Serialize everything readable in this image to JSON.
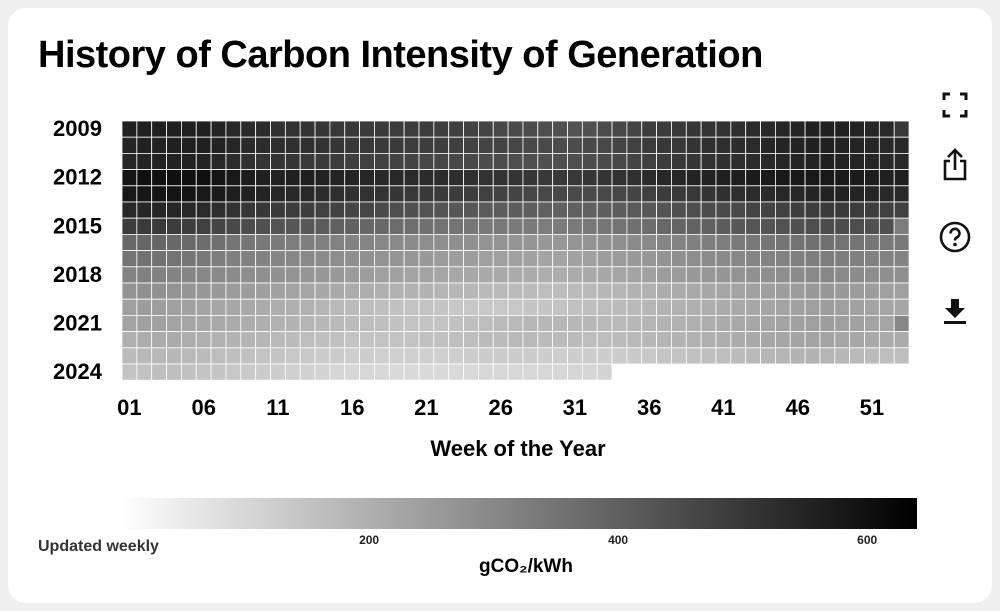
{
  "header": {
    "title": "History of Carbon Intensity of Generation"
  },
  "toolbar": {
    "icons": [
      "fullscreen-icon",
      "share-icon",
      "help-icon",
      "download-icon"
    ]
  },
  "footer": {
    "updated": "Updated weekly"
  },
  "chart_data": {
    "type": "heatmap",
    "title": "History of Carbon Intensity of Generation",
    "xlabel": "Week of the Year",
    "ylabel": "",
    "color_scale": {
      "min": 0,
      "max": 640,
      "ticks": [
        200,
        400,
        600
      ],
      "label": "gCO₂/kWh",
      "low_color": "#ffffff",
      "high_color": "#000000"
    },
    "x_ticks": [
      "01",
      "06",
      "11",
      "16",
      "21",
      "26",
      "31",
      "36",
      "41",
      "46",
      "51"
    ],
    "y_ticks": [
      "2009",
      "2012",
      "2015",
      "2018",
      "2021",
      "2024"
    ],
    "weeks_per_year": 53,
    "years": [
      {
        "year": 2009,
        "values": [
          560,
          560,
          560,
          560,
          560,
          560,
          550,
          540,
          535,
          530,
          520,
          515,
          510,
          505,
          500,
          500,
          495,
          495,
          490,
          490,
          490,
          485,
          480,
          475,
          470,
          460,
          455,
          450,
          445,
          440,
          435,
          440,
          450,
          460,
          470,
          485,
          490,
          500,
          505,
          510,
          515,
          525,
          535,
          540,
          545,
          550,
          560,
          560,
          560,
          550,
          545,
          540,
          500
        ]
      },
      {
        "year": 2010,
        "values": [
          550,
          555,
          555,
          560,
          560,
          560,
          555,
          545,
          535,
          530,
          525,
          520,
          520,
          515,
          505,
          500,
          500,
          495,
          495,
          490,
          485,
          485,
          480,
          475,
          470,
          470,
          465,
          460,
          455,
          450,
          450,
          460,
          460,
          470,
          480,
          490,
          500,
          500,
          510,
          520,
          525,
          530,
          535,
          545,
          550,
          555,
          560,
          560,
          555,
          550,
          545,
          540,
          540
        ]
      },
      {
        "year": 2011,
        "values": [
          545,
          550,
          555,
          555,
          555,
          550,
          540,
          530,
          520,
          510,
          510,
          505,
          500,
          495,
          490,
          485,
          480,
          480,
          475,
          470,
          465,
          465,
          460,
          455,
          450,
          450,
          445,
          445,
          440,
          440,
          445,
          450,
          455,
          460,
          470,
          480,
          490,
          500,
          505,
          515,
          520,
          525,
          530,
          540,
          545,
          550,
          555,
          560,
          555,
          550,
          545,
          540,
          540
        ]
      },
      {
        "year": 2012,
        "values": [
          590,
          600,
          600,
          600,
          600,
          600,
          590,
          580,
          570,
          560,
          555,
          560,
          560,
          555,
          550,
          550,
          545,
          540,
          540,
          535,
          530,
          530,
          525,
          520,
          515,
          515,
          510,
          505,
          500,
          500,
          500,
          505,
          510,
          515,
          520,
          530,
          540,
          545,
          550,
          555,
          560,
          565,
          570,
          575,
          580,
          580,
          580,
          580,
          575,
          570,
          565,
          560,
          560
        ]
      },
      {
        "year": 2013,
        "values": [
          580,
          585,
          590,
          590,
          590,
          580,
          575,
          565,
          560,
          550,
          545,
          540,
          540,
          530,
          525,
          520,
          515,
          510,
          505,
          500,
          500,
          495,
          490,
          485,
          480,
          475,
          470,
          465,
          460,
          460,
          455,
          455,
          460,
          465,
          470,
          480,
          490,
          495,
          500,
          510,
          520,
          525,
          530,
          535,
          540,
          545,
          550,
          555,
          555,
          550,
          545,
          540,
          540
        ]
      },
      {
        "year": 2014,
        "values": [
          540,
          545,
          545,
          545,
          540,
          535,
          525,
          515,
          505,
          500,
          495,
          490,
          485,
          480,
          475,
          470,
          465,
          455,
          445,
          440,
          435,
          430,
          425,
          420,
          415,
          410,
          410,
          405,
          400,
          400,
          400,
          400,
          405,
          410,
          415,
          420,
          430,
          440,
          445,
          450,
          455,
          460,
          470,
          475,
          480,
          485,
          490,
          495,
          495,
          490,
          485,
          480,
          480
        ]
      },
      {
        "year": 2015,
        "values": [
          490,
          495,
          495,
          490,
          485,
          480,
          470,
          460,
          450,
          440,
          430,
          425,
          420,
          410,
          400,
          395,
          385,
          380,
          370,
          365,
          360,
          355,
          350,
          345,
          340,
          340,
          335,
          335,
          330,
          330,
          335,
          340,
          345,
          355,
          360,
          370,
          380,
          390,
          395,
          400,
          410,
          420,
          425,
          430,
          435,
          440,
          445,
          450,
          450,
          445,
          440,
          440,
          330
        ]
      },
      {
        "year": 2016,
        "values": [
          380,
          385,
          385,
          380,
          375,
          370,
          360,
          350,
          345,
          340,
          335,
          330,
          325,
          320,
          315,
          310,
          305,
          300,
          295,
          290,
          285,
          280,
          280,
          275,
          270,
          270,
          265,
          265,
          260,
          260,
          265,
          270,
          275,
          280,
          290,
          295,
          305,
          310,
          320,
          325,
          330,
          335,
          340,
          345,
          350,
          355,
          360,
          360,
          355,
          350,
          345,
          340,
          340
        ]
      },
      {
        "year": 2017,
        "values": [
          350,
          355,
          355,
          350,
          345,
          340,
          330,
          320,
          315,
          310,
          305,
          300,
          295,
          290,
          285,
          280,
          275,
          270,
          265,
          260,
          255,
          250,
          245,
          245,
          240,
          240,
          235,
          235,
          230,
          230,
          235,
          240,
          245,
          250,
          255,
          260,
          270,
          280,
          285,
          290,
          295,
          300,
          305,
          310,
          315,
          320,
          325,
          330,
          325,
          320,
          315,
          310,
          310
        ]
      },
      {
        "year": 2018,
        "values": [
          310,
          315,
          315,
          310,
          305,
          300,
          295,
          290,
          285,
          280,
          275,
          270,
          265,
          260,
          255,
          250,
          245,
          240,
          235,
          230,
          230,
          225,
          220,
          220,
          215,
          215,
          210,
          210,
          205,
          205,
          210,
          215,
          220,
          225,
          230,
          235,
          245,
          250,
          255,
          260,
          265,
          270,
          275,
          280,
          285,
          290,
          295,
          300,
          295,
          290,
          285,
          280,
          280
        ]
      },
      {
        "year": 2019,
        "values": [
          270,
          275,
          275,
          270,
          265,
          260,
          255,
          250,
          245,
          240,
          235,
          230,
          225,
          220,
          215,
          210,
          205,
          200,
          195,
          190,
          190,
          185,
          180,
          180,
          175,
          175,
          170,
          170,
          165,
          165,
          170,
          175,
          180,
          185,
          190,
          195,
          205,
          210,
          215,
          220,
          225,
          230,
          235,
          240,
          245,
          250,
          255,
          260,
          255,
          250,
          245,
          240,
          240
        ]
      },
      {
        "year": 2020,
        "values": [
          240,
          245,
          245,
          240,
          235,
          230,
          225,
          220,
          215,
          210,
          205,
          200,
          195,
          185,
          175,
          170,
          165,
          160,
          155,
          150,
          150,
          145,
          140,
          140,
          140,
          140,
          140,
          145,
          145,
          150,
          155,
          160,
          165,
          170,
          175,
          180,
          190,
          195,
          200,
          205,
          210,
          215,
          220,
          225,
          230,
          235,
          240,
          245,
          240,
          235,
          230,
          225,
          225
        ]
      },
      {
        "year": 2021,
        "values": [
          230,
          235,
          235,
          230,
          225,
          220,
          215,
          210,
          205,
          200,
          195,
          190,
          185,
          180,
          175,
          170,
          165,
          160,
          155,
          150,
          150,
          150,
          155,
          160,
          165,
          170,
          175,
          180,
          180,
          180,
          180,
          180,
          175,
          175,
          180,
          185,
          190,
          195,
          200,
          205,
          210,
          215,
          220,
          225,
          230,
          235,
          240,
          245,
          240,
          235,
          230,
          225,
          300
        ]
      },
      {
        "year": 2022,
        "values": [
          200,
          205,
          210,
          210,
          205,
          200,
          195,
          190,
          185,
          180,
          175,
          170,
          165,
          160,
          155,
          150,
          150,
          150,
          150,
          150,
          155,
          155,
          160,
          165,
          170,
          170,
          175,
          175,
          170,
          170,
          170,
          165,
          165,
          170,
          175,
          180,
          185,
          190,
          195,
          200,
          205,
          210,
          215,
          220,
          225,
          230,
          230,
          230,
          225,
          220,
          215,
          210,
          210
        ]
      },
      {
        "year": 2023,
        "values": [
          170,
          175,
          180,
          180,
          175,
          170,
          165,
          160,
          155,
          150,
          145,
          140,
          135,
          130,
          130,
          125,
          125,
          120,
          120,
          120,
          120,
          120,
          125,
          125,
          130,
          130,
          130,
          130,
          125,
          125,
          125,
          125,
          125,
          130,
          135,
          140,
          145,
          150,
          155,
          160,
          165,
          170,
          175,
          180,
          185,
          190,
          190,
          185,
          180,
          175,
          170,
          165,
          165
        ]
      },
      {
        "year": 2024,
        "values": [
          150,
          155,
          160,
          160,
          155,
          150,
          145,
          140,
          135,
          130,
          125,
          120,
          115,
          110,
          105,
          100,
          100,
          100,
          95,
          95,
          95,
          95,
          95,
          95,
          100,
          100,
          100,
          100,
          100,
          100,
          105,
          105,
          110
        ]
      }
    ]
  }
}
